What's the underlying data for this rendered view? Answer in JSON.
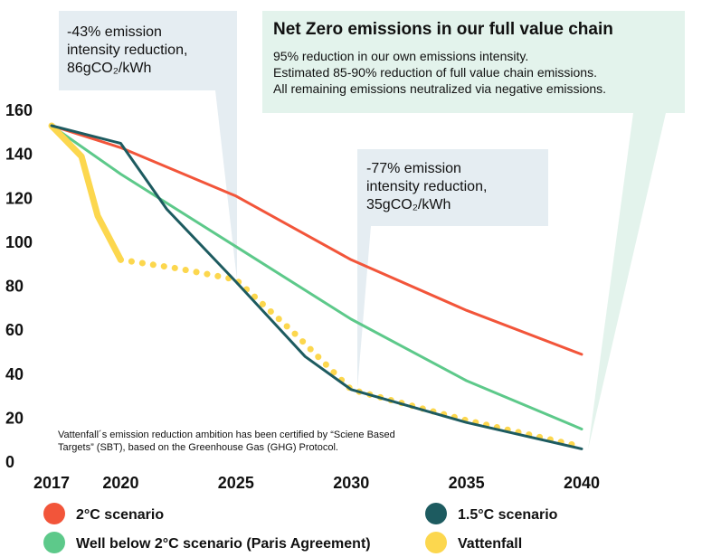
{
  "colors": {
    "two_c": "#f2553a",
    "well_below": "#5dc98a",
    "one_five": "#1d5b60",
    "vattenfall": "#fcd74e",
    "callout_blue": "#e5edf2",
    "callout_green": "#e3f3ec"
  },
  "callouts": [
    {
      "lines": [
        "-43% emission",
        "intensity reduction,",
        "86gCO₂/kWh"
      ]
    },
    {
      "lines": [
        "-77% emission",
        "intensity reduction,",
        "35gCO₂/kWh"
      ]
    }
  ],
  "net_zero": {
    "title": "Net Zero emissions in our full value chain",
    "lines": [
      "95% reduction in our own emissions intensity.",
      "Estimated 85-90% reduction of full value chain emissions.",
      "All remaining emissions neutralized via negative emissions."
    ]
  },
  "footnote": [
    "Vattenfall´s emission reduction ambition has been certified by “Sciene Based",
    "Targets” (SBT), based on the Greenhouse Gas (GHG) Protocol."
  ],
  "chart_data": {
    "type": "line",
    "x_ticks": [
      "2017",
      "2020",
      "2025",
      "2030",
      "2035",
      "2040"
    ],
    "y_ticks": [
      "0",
      "20",
      "40",
      "60",
      "80",
      "100",
      "120",
      "140",
      "160"
    ],
    "xlim": [
      2017,
      2040
    ],
    "ylim": [
      0,
      160
    ],
    "grid": false,
    "legend_position": "bottom",
    "series": [
      {
        "name": "2°C scenario",
        "color_key": "two_c",
        "style": "solid",
        "points": [
          [
            2017,
            153
          ],
          [
            2020,
            143
          ],
          [
            2025,
            121
          ],
          [
            2030,
            92
          ],
          [
            2035,
            69
          ],
          [
            2040,
            49
          ]
        ]
      },
      {
        "name": "Well below 2°C scenario (Paris Agreement)",
        "color_key": "well_below",
        "style": "solid",
        "points": [
          [
            2017,
            153
          ],
          [
            2020,
            131
          ],
          [
            2025,
            98
          ],
          [
            2030,
            65
          ],
          [
            2035,
            37
          ],
          [
            2040,
            15
          ]
        ]
      },
      {
        "name": "1.5°C scenario",
        "color_key": "one_five",
        "style": "solid",
        "points": [
          [
            2017,
            153
          ],
          [
            2020,
            145
          ],
          [
            2022,
            115
          ],
          [
            2025,
            82
          ],
          [
            2028,
            48
          ],
          [
            2030,
            33
          ],
          [
            2035,
            18
          ],
          [
            2040,
            6
          ]
        ]
      },
      {
        "name": "Vattenfall",
        "color_key": "vattenfall",
        "style": "solid",
        "points": [
          [
            2017,
            153
          ],
          [
            2018.3,
            139
          ],
          [
            2019,
            112
          ],
          [
            2020,
            92
          ]
        ]
      },
      {
        "name": "Vattenfall",
        "color_key": "vattenfall",
        "style": "dotted",
        "points": [
          [
            2020,
            92
          ],
          [
            2022.5,
            88
          ],
          [
            2025,
            83
          ],
          [
            2027.5,
            59
          ],
          [
            2030,
            33
          ],
          [
            2035,
            19
          ],
          [
            2040,
            7
          ]
        ]
      }
    ],
    "legend": [
      {
        "label": "2°C scenario",
        "color_key": "two_c"
      },
      {
        "label": "Well below 2°C scenario (Paris Agreement)",
        "color_key": "well_below"
      },
      {
        "label": "1.5°C scenario",
        "color_key": "one_five"
      },
      {
        "label": "Vattenfall",
        "color_key": "vattenfall"
      }
    ]
  }
}
